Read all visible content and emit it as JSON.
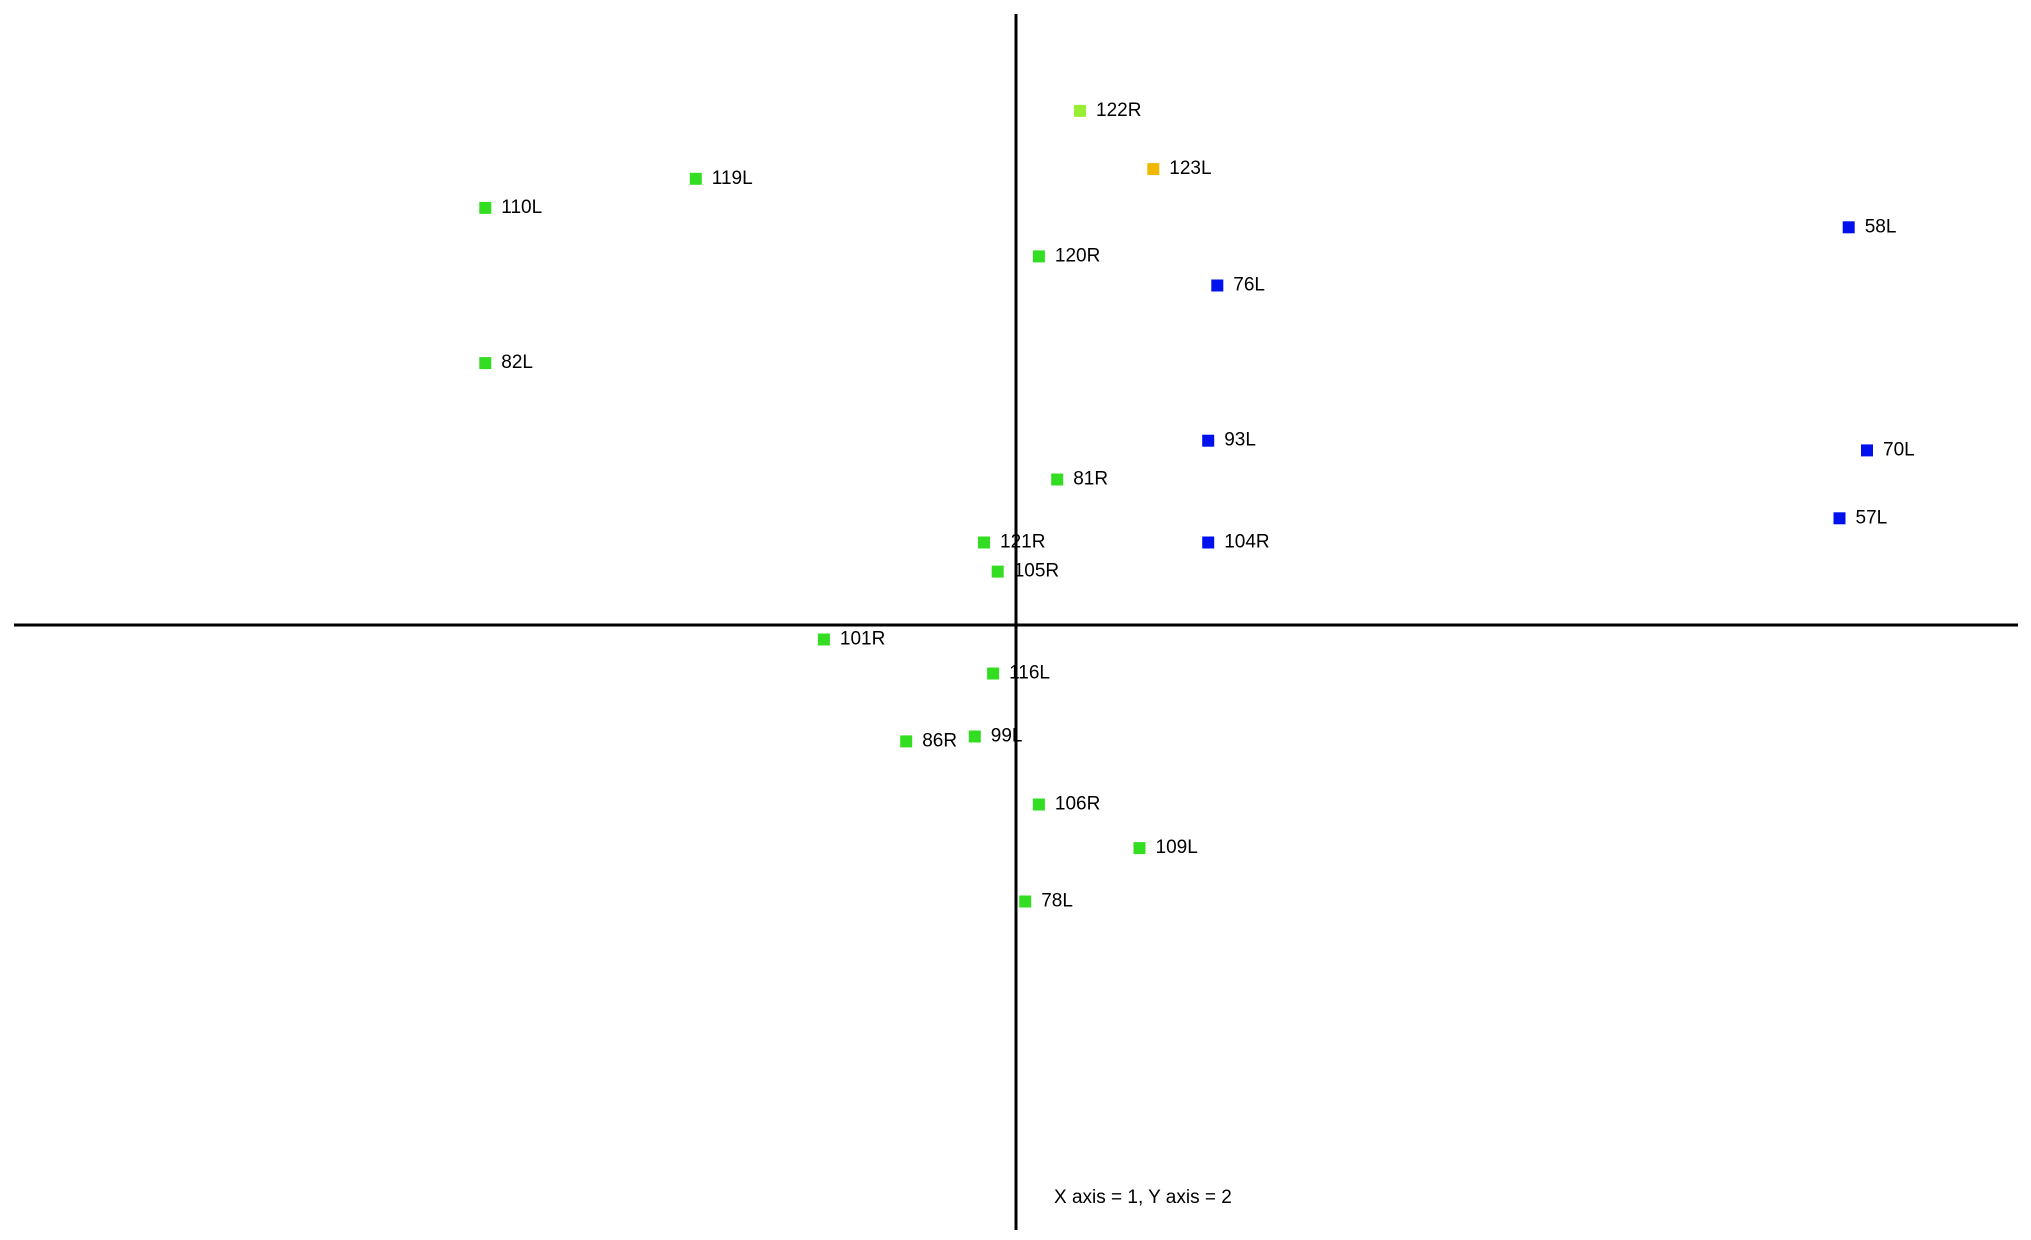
{
  "chart_data": {
    "type": "scatter",
    "caption": "X axis = 1, Y axis = 2",
    "xlim": [
      -10,
      10
    ],
    "ylim": [
      -6,
      6
    ],
    "points": [
      {
        "label": "122R",
        "x": 0.7,
        "y": 5.3,
        "color": "#99ee33"
      },
      {
        "label": "123L",
        "x": 1.5,
        "y": 4.7,
        "color": "#f0b800"
      },
      {
        "label": "119L",
        "x": -3.5,
        "y": 4.6,
        "color": "#33dd22"
      },
      {
        "label": "110L",
        "x": -5.8,
        "y": 4.3,
        "color": "#33dd22"
      },
      {
        "label": "58L",
        "x": 9.1,
        "y": 4.1,
        "color": "#0011ee"
      },
      {
        "label": "120R",
        "x": 0.25,
        "y": 3.8,
        "color": "#33dd22"
      },
      {
        "label": "76L",
        "x": 2.2,
        "y": 3.5,
        "color": "#0011ee"
      },
      {
        "label": "82L",
        "x": -5.8,
        "y": 2.7,
        "color": "#33dd22"
      },
      {
        "label": "93L",
        "x": 2.1,
        "y": 1.9,
        "color": "#0011ee"
      },
      {
        "label": "70L",
        "x": 9.3,
        "y": 1.8,
        "color": "#0011ee"
      },
      {
        "label": "81R",
        "x": 0.45,
        "y": 1.5,
        "color": "#33dd22"
      },
      {
        "label": "57L",
        "x": 9.0,
        "y": 1.1,
        "color": "#0011ee"
      },
      {
        "label": "121R",
        "x": -0.35,
        "y": 0.85,
        "color": "#33dd22"
      },
      {
        "label": "104R",
        "x": 2.1,
        "y": 0.85,
        "color": "#0011ee"
      },
      {
        "label": "105R",
        "x": -0.2,
        "y": 0.55,
        "color": "#33dd22"
      },
      {
        "label": "101R",
        "x": -2.1,
        "y": -0.15,
        "color": "#33dd22"
      },
      {
        "label": "116L",
        "x": -0.25,
        "y": -0.5,
        "color": "#33dd22"
      },
      {
        "label": "99L",
        "x": -0.45,
        "y": -1.15,
        "color": "#33dd22"
      },
      {
        "label": "86R",
        "x": -1.2,
        "y": -1.2,
        "color": "#33dd22"
      },
      {
        "label": "106R",
        "x": 0.25,
        "y": -1.85,
        "color": "#33dd22"
      },
      {
        "label": "109L",
        "x": 1.35,
        "y": -2.3,
        "color": "#33dd22"
      },
      {
        "label": "78L",
        "x": 0.1,
        "y": -2.85,
        "color": "#33dd22"
      }
    ]
  }
}
